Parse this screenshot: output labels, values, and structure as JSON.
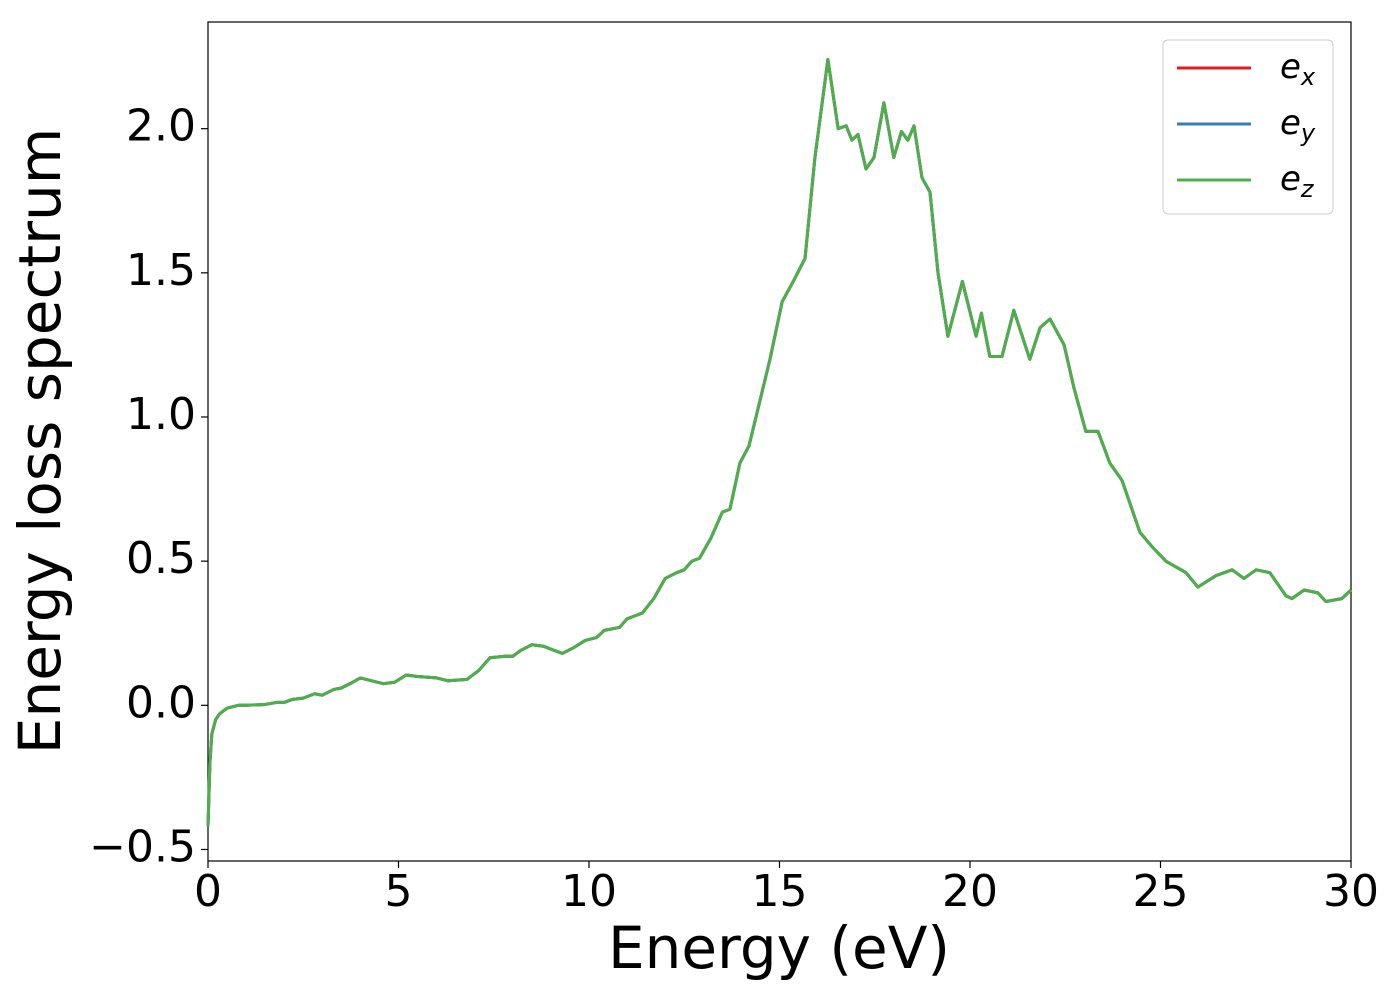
{
  "chart_data": {
    "type": "line",
    "x_label": "Energy (eV)",
    "y_label": "Energy loss spectrum",
    "x": [
      0,
      0.05,
      0.1,
      0.2,
      0.3,
      0.5,
      0.8,
      1.0,
      1.5,
      1.8,
      2.0,
      2.2,
      2.5,
      2.8,
      3.0,
      3.3,
      3.5,
      3.8,
      4.0,
      4.3,
      4.6,
      4.9,
      5.2,
      5.5,
      6.0,
      6.3,
      6.8,
      7.1,
      7.4,
      7.8,
      8.0,
      8.2,
      8.5,
      8.8,
      9.0,
      9.3,
      9.6,
      9.9,
      10.2,
      10.4,
      10.8,
      11.0,
      11.4,
      11.7,
      12.0,
      12.3,
      12.5,
      12.7,
      12.9,
      13.2,
      13.5,
      13.7,
      13.96,
      14.2,
      14.75,
      15.07,
      15.4,
      15.67,
      15.93,
      16.27,
      16.54,
      16.75,
      16.9,
      17.06,
      17.27,
      17.48,
      17.74,
      18.0,
      18.2,
      18.37,
      18.53,
      18.74,
      18.95,
      19.16,
      19.42,
      19.8,
      20.16,
      20.3,
      20.52,
      20.84,
      21.15,
      21.57,
      21.84,
      22.1,
      22.47,
      22.73,
      23.04,
      23.36,
      23.67,
      23.99,
      24.46,
      24.78,
      25.14,
      25.67,
      25.98,
      26.46,
      26.88,
      27.19,
      27.51,
      27.87,
      28.29,
      28.45,
      28.77,
      29.13,
      29.34,
      29.76,
      30
    ],
    "series": [
      {
        "name": "ex",
        "color": "#e41a1c",
        "values": [
          -0.42,
          -0.2,
          -0.1,
          -0.05,
          -0.03,
          -0.01,
          0.0,
          0.0,
          0.003,
          0.01,
          0.01,
          0.02,
          0.025,
          0.04,
          0.035,
          0.055,
          0.06,
          0.08,
          0.095,
          0.085,
          0.075,
          0.08,
          0.105,
          0.1,
          0.095,
          0.085,
          0.09,
          0.12,
          0.165,
          0.17,
          0.17,
          0.19,
          0.21,
          0.205,
          0.195,
          0.18,
          0.2,
          0.225,
          0.235,
          0.26,
          0.27,
          0.3,
          0.32,
          0.37,
          0.44,
          0.46,
          0.47,
          0.5,
          0.51,
          0.58,
          0.67,
          0.68,
          0.84,
          0.9,
          1.2,
          1.4,
          1.48,
          1.55,
          1.9,
          2.24,
          2.0,
          2.01,
          1.96,
          1.98,
          1.86,
          1.9,
          2.09,
          1.9,
          1.99,
          1.96,
          2.01,
          1.83,
          1.78,
          1.5,
          1.28,
          1.47,
          1.28,
          1.36,
          1.21,
          1.21,
          1.37,
          1.2,
          1.31,
          1.34,
          1.25,
          1.1,
          0.95,
          0.95,
          0.84,
          0.78,
          0.6,
          0.55,
          0.5,
          0.46,
          0.41,
          0.45,
          0.47,
          0.44,
          0.47,
          0.46,
          0.38,
          0.37,
          0.4,
          0.39,
          0.36,
          0.37,
          0.4
        ]
      },
      {
        "name": "ey",
        "color": "#377eb8",
        "values": [
          -0.42,
          -0.2,
          -0.1,
          -0.05,
          -0.03,
          -0.01,
          0.0,
          0.0,
          0.003,
          0.01,
          0.01,
          0.02,
          0.025,
          0.04,
          0.035,
          0.055,
          0.06,
          0.08,
          0.095,
          0.085,
          0.075,
          0.08,
          0.105,
          0.1,
          0.095,
          0.085,
          0.09,
          0.12,
          0.165,
          0.17,
          0.17,
          0.19,
          0.21,
          0.205,
          0.195,
          0.18,
          0.2,
          0.225,
          0.235,
          0.26,
          0.27,
          0.3,
          0.32,
          0.37,
          0.44,
          0.46,
          0.47,
          0.5,
          0.51,
          0.58,
          0.67,
          0.68,
          0.84,
          0.9,
          1.2,
          1.4,
          1.48,
          1.55,
          1.9,
          2.24,
          2.0,
          2.01,
          1.96,
          1.98,
          1.86,
          1.9,
          2.09,
          1.9,
          1.99,
          1.96,
          2.01,
          1.83,
          1.78,
          1.5,
          1.28,
          1.47,
          1.28,
          1.36,
          1.21,
          1.21,
          1.37,
          1.2,
          1.31,
          1.34,
          1.25,
          1.1,
          0.95,
          0.95,
          0.84,
          0.78,
          0.6,
          0.55,
          0.5,
          0.46,
          0.41,
          0.45,
          0.47,
          0.44,
          0.47,
          0.46,
          0.38,
          0.37,
          0.4,
          0.39,
          0.36,
          0.37,
          0.4
        ]
      },
      {
        "name": "ez",
        "color": "#4daf4a",
        "values": [
          -0.42,
          -0.2,
          -0.1,
          -0.05,
          -0.03,
          -0.01,
          0.0,
          0.0,
          0.003,
          0.01,
          0.01,
          0.02,
          0.025,
          0.04,
          0.035,
          0.055,
          0.06,
          0.08,
          0.095,
          0.085,
          0.075,
          0.08,
          0.105,
          0.1,
          0.095,
          0.085,
          0.09,
          0.12,
          0.165,
          0.17,
          0.17,
          0.19,
          0.21,
          0.205,
          0.195,
          0.18,
          0.2,
          0.225,
          0.235,
          0.26,
          0.27,
          0.3,
          0.32,
          0.37,
          0.44,
          0.46,
          0.47,
          0.5,
          0.51,
          0.58,
          0.67,
          0.68,
          0.84,
          0.9,
          1.2,
          1.4,
          1.48,
          1.55,
          1.9,
          2.24,
          2.0,
          2.01,
          1.96,
          1.98,
          1.86,
          1.9,
          2.09,
          1.9,
          1.99,
          1.96,
          2.01,
          1.83,
          1.78,
          1.5,
          1.28,
          1.47,
          1.28,
          1.36,
          1.21,
          1.21,
          1.37,
          1.2,
          1.31,
          1.34,
          1.25,
          1.1,
          0.95,
          0.95,
          0.84,
          0.78,
          0.6,
          0.55,
          0.5,
          0.46,
          0.41,
          0.45,
          0.47,
          0.44,
          0.47,
          0.46,
          0.38,
          0.37,
          0.4,
          0.39,
          0.36,
          0.37,
          0.4
        ]
      }
    ],
    "xlim": [
      0,
      30
    ],
    "ylim": [
      -0.54,
      2.37
    ],
    "xticks": [
      0,
      5,
      10,
      15,
      20,
      25,
      30
    ],
    "yticks": [
      {
        "value": -0.5,
        "label": "−0.5"
      },
      {
        "value": 0,
        "label": "0.0"
      },
      {
        "value": 0.5,
        "label": "0.5"
      },
      {
        "value": 1,
        "label": "1.0"
      },
      {
        "value": 1.5,
        "label": "1.5"
      },
      {
        "value": 2,
        "label": "2.0"
      }
    ],
    "grid": false,
    "legend": "upper right"
  }
}
